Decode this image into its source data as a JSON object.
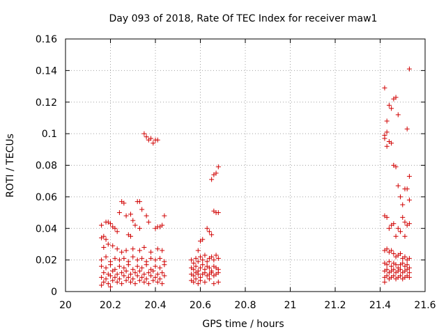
{
  "chart_data": {
    "type": "scatter",
    "title": "Day 093 of 2018, Rate Of TEC Index for receiver maw1",
    "xlabel": "GPS time / hours",
    "ylabel": "ROTI / TECUs",
    "xlim": [
      20,
      21.6
    ],
    "ylim": [
      0,
      0.16
    ],
    "xticks": [
      "20",
      "20.2",
      "20.4",
      "20.6",
      "20.8",
      "21",
      "21.2",
      "21.4",
      "21.6"
    ],
    "yticks": [
      "0",
      "0.02",
      "0.04",
      "0.06",
      "0.08",
      "0.1",
      "0.12",
      "0.14",
      "0.16"
    ],
    "grid": true,
    "marker": "+",
    "color": "#d00000",
    "series": [
      {
        "name": "ROTI",
        "points": [
          [
            20.16,
            0.042
          ],
          [
            20.17,
            0.035
          ],
          [
            20.18,
            0.044
          ],
          [
            20.19,
            0.044
          ],
          [
            20.2,
            0.043
          ],
          [
            20.21,
            0.041
          ],
          [
            20.22,
            0.04
          ],
          [
            20.23,
            0.038
          ],
          [
            20.16,
            0.034
          ],
          [
            20.18,
            0.033
          ],
          [
            20.24,
            0.05
          ],
          [
            20.25,
            0.057
          ],
          [
            20.26,
            0.056
          ],
          [
            20.27,
            0.048
          ],
          [
            20.29,
            0.049
          ],
          [
            20.3,
            0.045
          ],
          [
            20.32,
            0.057
          ],
          [
            20.33,
            0.057
          ],
          [
            20.34,
            0.052
          ],
          [
            20.36,
            0.048
          ],
          [
            20.28,
            0.036
          ],
          [
            20.29,
            0.035
          ],
          [
            20.31,
            0.042
          ],
          [
            20.33,
            0.04
          ],
          [
            20.37,
            0.044
          ],
          [
            20.4,
            0.04
          ],
          [
            20.41,
            0.041
          ],
          [
            20.42,
            0.041
          ],
          [
            20.43,
            0.042
          ],
          [
            20.44,
            0.048
          ],
          [
            20.35,
            0.1
          ],
          [
            20.36,
            0.098
          ],
          [
            20.37,
            0.096
          ],
          [
            20.38,
            0.097
          ],
          [
            20.39,
            0.094
          ],
          [
            20.4,
            0.096
          ],
          [
            20.41,
            0.096
          ],
          [
            20.17,
            0.028
          ],
          [
            20.19,
            0.03
          ],
          [
            20.21,
            0.029
          ],
          [
            20.23,
            0.027
          ],
          [
            20.25,
            0.025
          ],
          [
            20.27,
            0.026
          ],
          [
            20.3,
            0.027
          ],
          [
            20.33,
            0.026
          ],
          [
            20.35,
            0.028
          ],
          [
            20.38,
            0.025
          ],
          [
            20.41,
            0.027
          ],
          [
            20.43,
            0.026
          ],
          [
            20.16,
            0.02
          ],
          [
            20.18,
            0.022
          ],
          [
            20.2,
            0.019
          ],
          [
            20.22,
            0.021
          ],
          [
            20.24,
            0.02
          ],
          [
            20.26,
            0.021
          ],
          [
            20.28,
            0.019
          ],
          [
            20.3,
            0.022
          ],
          [
            20.32,
            0.02
          ],
          [
            20.34,
            0.021
          ],
          [
            20.36,
            0.019
          ],
          [
            20.38,
            0.021
          ],
          [
            20.4,
            0.02
          ],
          [
            20.42,
            0.021
          ],
          [
            20.44,
            0.019
          ],
          [
            20.16,
            0.016
          ],
          [
            20.18,
            0.015
          ],
          [
            20.2,
            0.017
          ],
          [
            20.22,
            0.014
          ],
          [
            20.24,
            0.016
          ],
          [
            20.26,
            0.015
          ],
          [
            20.28,
            0.017
          ],
          [
            20.3,
            0.014
          ],
          [
            20.32,
            0.016
          ],
          [
            20.34,
            0.015
          ],
          [
            20.36,
            0.017
          ],
          [
            20.38,
            0.014
          ],
          [
            20.4,
            0.016
          ],
          [
            20.42,
            0.015
          ],
          [
            20.44,
            0.017
          ],
          [
            20.17,
            0.012
          ],
          [
            20.19,
            0.011
          ],
          [
            20.21,
            0.013
          ],
          [
            20.23,
            0.011
          ],
          [
            20.25,
            0.012
          ],
          [
            20.27,
            0.013
          ],
          [
            20.29,
            0.011
          ],
          [
            20.31,
            0.012
          ],
          [
            20.33,
            0.013
          ],
          [
            20.35,
            0.011
          ],
          [
            20.37,
            0.012
          ],
          [
            20.39,
            0.013
          ],
          [
            20.41,
            0.011
          ],
          [
            20.43,
            0.012
          ],
          [
            20.16,
            0.009
          ],
          [
            20.18,
            0.008
          ],
          [
            20.2,
            0.01
          ],
          [
            20.22,
            0.009
          ],
          [
            20.24,
            0.008
          ],
          [
            20.26,
            0.01
          ],
          [
            20.28,
            0.009
          ],
          [
            20.3,
            0.008
          ],
          [
            20.32,
            0.01
          ],
          [
            20.34,
            0.009
          ],
          [
            20.36,
            0.008
          ],
          [
            20.38,
            0.01
          ],
          [
            20.4,
            0.009
          ],
          [
            20.42,
            0.008
          ],
          [
            20.44,
            0.01
          ],
          [
            20.17,
            0.006
          ],
          [
            20.19,
            0.005
          ],
          [
            20.21,
            0.007
          ],
          [
            20.23,
            0.006
          ],
          [
            20.25,
            0.005
          ],
          [
            20.27,
            0.007
          ],
          [
            20.29,
            0.006
          ],
          [
            20.31,
            0.005
          ],
          [
            20.33,
            0.007
          ],
          [
            20.35,
            0.006
          ],
          [
            20.37,
            0.005
          ],
          [
            20.39,
            0.007
          ],
          [
            20.41,
            0.006
          ],
          [
            20.43,
            0.005
          ],
          [
            20.16,
            0.004
          ],
          [
            20.2,
            0.003
          ],
          [
            20.56,
            0.02
          ],
          [
            20.57,
            0.018
          ],
          [
            20.58,
            0.021
          ],
          [
            20.59,
            0.019
          ],
          [
            20.6,
            0.022
          ],
          [
            20.61,
            0.02
          ],
          [
            20.62,
            0.023
          ],
          [
            20.63,
            0.019
          ],
          [
            20.64,
            0.021
          ],
          [
            20.65,
            0.022
          ],
          [
            20.66,
            0.02
          ],
          [
            20.67,
            0.023
          ],
          [
            20.68,
            0.021
          ],
          [
            20.56,
            0.015
          ],
          [
            20.57,
            0.014
          ],
          [
            20.58,
            0.016
          ],
          [
            20.59,
            0.013
          ],
          [
            20.6,
            0.015
          ],
          [
            20.61,
            0.017
          ],
          [
            20.62,
            0.014
          ],
          [
            20.63,
            0.016
          ],
          [
            20.64,
            0.015
          ],
          [
            20.65,
            0.013
          ],
          [
            20.66,
            0.016
          ],
          [
            20.67,
            0.015
          ],
          [
            20.68,
            0.014
          ],
          [
            20.56,
            0.011
          ],
          [
            20.57,
            0.01
          ],
          [
            20.58,
            0.012
          ],
          [
            20.59,
            0.011
          ],
          [
            20.6,
            0.009
          ],
          [
            20.61,
            0.011
          ],
          [
            20.62,
            0.012
          ],
          [
            20.63,
            0.01
          ],
          [
            20.64,
            0.011
          ],
          [
            20.65,
            0.012
          ],
          [
            20.66,
            0.01
          ],
          [
            20.67,
            0.011
          ],
          [
            20.68,
            0.012
          ],
          [
            20.56,
            0.007
          ],
          [
            20.57,
            0.006
          ],
          [
            20.58,
            0.008
          ],
          [
            20.59,
            0.005
          ],
          [
            20.6,
            0.007
          ],
          [
            20.62,
            0.006
          ],
          [
            20.64,
            0.008
          ],
          [
            20.66,
            0.005
          ],
          [
            20.68,
            0.006
          ],
          [
            20.59,
            0.026
          ],
          [
            20.6,
            0.032
          ],
          [
            20.61,
            0.033
          ],
          [
            20.63,
            0.04
          ],
          [
            20.64,
            0.038
          ],
          [
            20.65,
            0.036
          ],
          [
            20.66,
            0.051
          ],
          [
            20.67,
            0.05
          ],
          [
            20.68,
            0.05
          ],
          [
            20.65,
            0.071
          ],
          [
            20.66,
            0.074
          ],
          [
            20.67,
            0.075
          ],
          [
            20.68,
            0.079
          ],
          [
            21.42,
            0.129
          ],
          [
            21.43,
            0.108
          ],
          [
            21.42,
            0.099
          ],
          [
            21.43,
            0.101
          ],
          [
            21.42,
            0.097
          ],
          [
            21.43,
            0.092
          ],
          [
            21.44,
            0.095
          ],
          [
            21.45,
            0.094
          ],
          [
            21.44,
            0.118
          ],
          [
            21.45,
            0.116
          ],
          [
            21.46,
            0.122
          ],
          [
            21.47,
            0.123
          ],
          [
            21.48,
            0.112
          ],
          [
            21.46,
            0.08
          ],
          [
            21.47,
            0.079
          ],
          [
            21.48,
            0.067
          ],
          [
            21.49,
            0.06
          ],
          [
            21.5,
            0.055
          ],
          [
            21.51,
            0.065
          ],
          [
            21.52,
            0.065
          ],
          [
            21.52,
            0.103
          ],
          [
            21.53,
            0.073
          ],
          [
            21.53,
            0.058
          ],
          [
            21.53,
            0.141
          ],
          [
            21.42,
            0.048
          ],
          [
            21.43,
            0.047
          ],
          [
            21.44,
            0.04
          ],
          [
            21.45,
            0.042
          ],
          [
            21.46,
            0.043
          ],
          [
            21.47,
            0.035
          ],
          [
            21.48,
            0.04
          ],
          [
            21.49,
            0.038
          ],
          [
            21.5,
            0.047
          ],
          [
            21.51,
            0.044
          ],
          [
            21.52,
            0.042
          ],
          [
            21.53,
            0.043
          ],
          [
            21.51,
            0.035
          ],
          [
            21.42,
            0.026
          ],
          [
            21.43,
            0.027
          ],
          [
            21.44,
            0.025
          ],
          [
            21.45,
            0.026
          ],
          [
            21.46,
            0.024
          ],
          [
            21.47,
            0.022
          ],
          [
            21.48,
            0.023
          ],
          [
            21.49,
            0.024
          ],
          [
            21.5,
            0.021
          ],
          [
            21.51,
            0.022
          ],
          [
            21.52,
            0.02
          ],
          [
            21.53,
            0.021
          ],
          [
            21.42,
            0.018
          ],
          [
            21.43,
            0.017
          ],
          [
            21.44,
            0.019
          ],
          [
            21.45,
            0.016
          ],
          [
            21.46,
            0.018
          ],
          [
            21.47,
            0.017
          ],
          [
            21.48,
            0.015
          ],
          [
            21.49,
            0.017
          ],
          [
            21.5,
            0.018
          ],
          [
            21.51,
            0.016
          ],
          [
            21.52,
            0.017
          ],
          [
            21.53,
            0.015
          ],
          [
            21.42,
            0.013
          ],
          [
            21.43,
            0.014
          ],
          [
            21.44,
            0.012
          ],
          [
            21.45,
            0.013
          ],
          [
            21.46,
            0.014
          ],
          [
            21.47,
            0.012
          ],
          [
            21.48,
            0.013
          ],
          [
            21.49,
            0.014
          ],
          [
            21.5,
            0.012
          ],
          [
            21.51,
            0.013
          ],
          [
            21.52,
            0.014
          ],
          [
            21.53,
            0.012
          ],
          [
            21.42,
            0.009
          ],
          [
            21.43,
            0.01
          ],
          [
            21.44,
            0.008
          ],
          [
            21.45,
            0.009
          ],
          [
            21.46,
            0.01
          ],
          [
            21.47,
            0.008
          ],
          [
            21.48,
            0.009
          ],
          [
            21.49,
            0.01
          ],
          [
            21.5,
            0.008
          ],
          [
            21.51,
            0.009
          ],
          [
            21.52,
            0.01
          ],
          [
            21.53,
            0.009
          ],
          [
            21.42,
            0.006
          ]
        ]
      }
    ]
  }
}
